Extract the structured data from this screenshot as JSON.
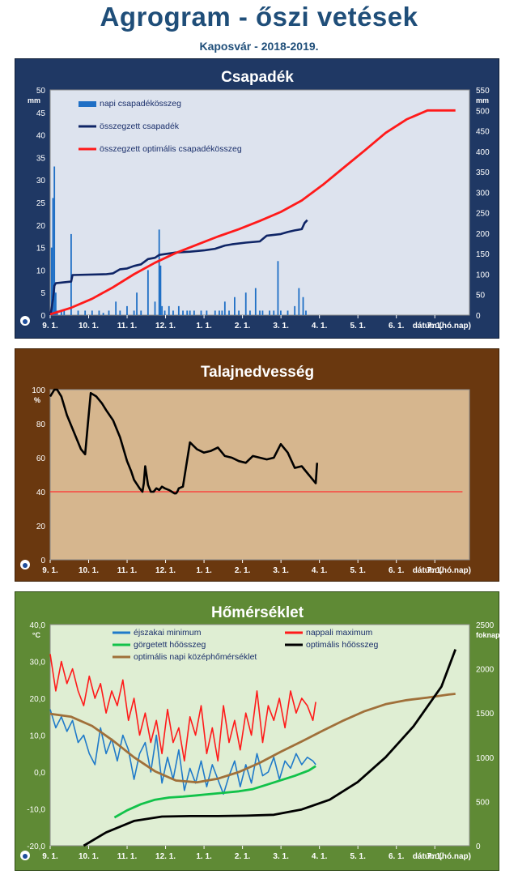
{
  "header": {
    "title": "Agrogram - őszi vetések",
    "subtitle": "Kaposvár  - 2018-2019."
  },
  "x_axis": {
    "tick_labels": [
      "9. 1.",
      "10. 1.",
      "11. 1.",
      "12. 1.",
      "1. 1.",
      "2. 1.",
      "3. 1.",
      "4. 1.",
      "5. 1.",
      "6. 1.",
      "7. 1."
    ],
    "label": "dátum (hó.nap)"
  },
  "colors": {
    "panel1_bg": "#1f3864",
    "panel2_bg": "#6a380f",
    "panel3_bg": "#5f8a35",
    "plot1_bg": "#dde3ee",
    "plot2_bg": "#d6b68e",
    "plot3_bg": "#dfeed3"
  },
  "chart_data": [
    {
      "type": "bar",
      "title": "Csapadék",
      "y_unit_left": "mm",
      "y_unit_right": "mm",
      "ylim_left": [
        0,
        50
      ],
      "ylim_right": [
        0,
        550
      ],
      "yticks_left": [
        0,
        5,
        10,
        15,
        20,
        25,
        30,
        35,
        40,
        45,
        50
      ],
      "yticks_right": [
        0,
        50,
        100,
        150,
        200,
        250,
        300,
        350,
        400,
        450,
        500,
        550
      ],
      "legend": [
        "napi csapadékösszeg",
        "összegzett csapadék",
        "összegzett optimális csapadékösszeg"
      ],
      "series": [
        {
          "name": "napi csapadékösszeg",
          "axis": "left",
          "style": "bar",
          "x": [
            1,
            2,
            3,
            4,
            5,
            8,
            10,
            15,
            20,
            25,
            30,
            35,
            38,
            42,
            47,
            50,
            55,
            60,
            62,
            65,
            70,
            75,
            78,
            79,
            80,
            82,
            85,
            88,
            92,
            95,
            98,
            100,
            103,
            108,
            112,
            118,
            121,
            123,
            125,
            128,
            132,
            135,
            140,
            143,
            147,
            150,
            152,
            157,
            160,
            163,
            165,
            170,
            175,
            178,
            181,
            183
          ],
          "values": [
            15,
            26,
            33,
            5,
            1,
            1,
            1,
            18,
            1,
            1,
            1,
            1,
            0.5,
            1,
            3,
            1,
            2,
            1,
            5,
            1,
            10,
            3,
            19,
            11,
            2,
            1,
            2,
            1,
            2,
            1,
            1,
            1,
            1,
            1,
            1,
            1,
            1,
            1,
            3,
            1,
            4,
            1,
            5,
            1,
            6,
            1,
            1,
            1,
            1,
            12,
            1,
            1,
            2,
            6,
            4,
            1
          ]
        },
        {
          "name": "összegzett csapadék",
          "axis": "right",
          "style": "line",
          "x": [
            0,
            1,
            2,
            3,
            4,
            15,
            16,
            40,
            45,
            50,
            55,
            60,
            65,
            70,
            75,
            78,
            80,
            90,
            100,
            110,
            118,
            125,
            130,
            140,
            150,
            155,
            160,
            165,
            170,
            175,
            180,
            182,
            184
          ],
          "values": [
            0,
            15,
            40,
            72,
            78,
            82,
            98,
            100,
            102,
            112,
            114,
            120,
            124,
            137,
            140,
            147,
            148,
            153,
            155,
            158,
            162,
            170,
            173,
            177,
            180,
            194,
            196,
            198,
            203,
            207,
            210,
            225,
            232
          ]
        },
        {
          "name": "összegzett optimális csapadékösszeg",
          "axis": "right",
          "style": "line",
          "x": [
            0,
            15,
            30,
            45,
            60,
            75,
            90,
            105,
            120,
            135,
            150,
            165,
            180,
            195,
            210,
            225,
            240,
            255,
            270,
            285,
            290
          ],
          "values": [
            2,
            18,
            40,
            68,
            100,
            128,
            152,
            172,
            192,
            210,
            230,
            252,
            280,
            318,
            360,
            402,
            445,
            478,
            500,
            500,
            500
          ]
        }
      ]
    },
    {
      "type": "line",
      "title": "Talajnedvesség",
      "y_unit_left": "%",
      "ylim_left": [
        0,
        100
      ],
      "yticks_left": [
        0,
        20,
        40,
        60,
        80,
        100
      ],
      "series": [
        {
          "name": "",
          "style": "line",
          "x": [
            0,
            3,
            5,
            8,
            12,
            18,
            22,
            25,
            27,
            29,
            33,
            37,
            40,
            45,
            50,
            55,
            58,
            60,
            64,
            66,
            67,
            68,
            70,
            72,
            74,
            76,
            78,
            80,
            82,
            85,
            89,
            90,
            91,
            92,
            95,
            100,
            105,
            110,
            115,
            120,
            125,
            130,
            135,
            140,
            145,
            150,
            155,
            160,
            165,
            170,
            175,
            180,
            185,
            188,
            190,
            191
          ],
          "values": [
            96,
            100,
            100,
            96,
            85,
            73,
            65,
            62,
            80,
            98,
            96,
            92,
            88,
            82,
            72,
            58,
            52,
            47,
            42,
            40,
            45,
            55,
            44,
            40,
            40,
            42,
            41,
            43,
            42,
            41,
            39,
            39,
            40,
            42,
            43,
            69,
            65,
            63,
            64,
            66,
            61,
            60,
            58,
            57,
            61,
            60,
            59,
            60,
            68,
            63,
            54,
            55,
            50,
            47,
            45,
            57
          ]
        },
        {
          "name": "",
          "style": "line",
          "x": [
            0,
            295
          ],
          "values": [
            40,
            40
          ]
        }
      ]
    },
    {
      "type": "line",
      "title": "Hőmérséklet",
      "y_unit_left": "°C",
      "y_unit_right": "foknap",
      "ylim_left": [
        -20,
        40
      ],
      "ylim_right": [
        0,
        2500
      ],
      "yticks_left": [
        -20,
        -10,
        0,
        10,
        20,
        30,
        40
      ],
      "yticks_left_labels": [
        "-20,0",
        "-10,0",
        "0,0",
        "10,0",
        "20,0",
        "30,0",
        "40,0"
      ],
      "yticks_right": [
        0,
        500,
        1000,
        1500,
        2000,
        2500
      ],
      "legend": [
        "éjszakai minimum",
        "nappali maximum",
        "görgetett hőösszeg",
        "optimális hőösszeg",
        "optimális napi középhőmérséklet"
      ],
      "series": [
        {
          "name": "éjszakai minimum",
          "axis": "left",
          "style": "line",
          "x": [
            0,
            4,
            8,
            12,
            16,
            20,
            24,
            28,
            32,
            36,
            40,
            44,
            48,
            52,
            56,
            60,
            64,
            68,
            72,
            76,
            80,
            84,
            88,
            92,
            96,
            100,
            104,
            108,
            112,
            116,
            120,
            124,
            128,
            132,
            136,
            140,
            144,
            148,
            152,
            156,
            160,
            164,
            168,
            172,
            176,
            180,
            184,
            188,
            190
          ],
          "values": [
            17,
            12,
            15,
            11,
            14,
            8,
            10,
            5,
            2,
            12,
            5,
            9,
            3,
            10,
            6,
            -2,
            5,
            8,
            0,
            10,
            -3,
            4,
            -2,
            6,
            -5,
            1,
            -3,
            3,
            -4,
            2,
            -2,
            -6,
            -1,
            3,
            -4,
            2,
            -3,
            5,
            -1,
            0,
            4,
            -2,
            3,
            1,
            5,
            2,
            4,
            3,
            2
          ]
        },
        {
          "name": "nappali maximum",
          "axis": "left",
          "style": "line",
          "x": [
            0,
            4,
            8,
            12,
            16,
            20,
            24,
            28,
            32,
            36,
            40,
            44,
            48,
            52,
            56,
            60,
            64,
            68,
            72,
            76,
            80,
            84,
            88,
            92,
            96,
            100,
            104,
            108,
            112,
            116,
            120,
            124,
            128,
            132,
            136,
            140,
            144,
            148,
            152,
            156,
            160,
            164,
            168,
            172,
            176,
            180,
            184,
            188,
            190
          ],
          "values": [
            32,
            22,
            30,
            24,
            28,
            22,
            18,
            26,
            20,
            24,
            16,
            22,
            18,
            25,
            14,
            20,
            10,
            16,
            8,
            14,
            5,
            17,
            8,
            12,
            3,
            15,
            10,
            18,
            5,
            12,
            3,
            18,
            8,
            14,
            6,
            16,
            10,
            22,
            8,
            18,
            14,
            20,
            12,
            22,
            16,
            20,
            18,
            14,
            19
          ]
        },
        {
          "name": "görgetett hőösszeg",
          "axis": "right",
          "style": "line",
          "x": [
            46,
            55,
            65,
            75,
            85,
            95,
            105,
            115,
            125,
            135,
            145,
            155,
            165,
            175,
            185,
            190
          ],
          "values": [
            320,
            400,
            470,
            520,
            545,
            555,
            570,
            585,
            600,
            615,
            640,
            690,
            740,
            790,
            850,
            900
          ]
        },
        {
          "name": "optimális hőösszeg",
          "axis": "right",
          "style": "line",
          "x": [
            24,
            40,
            60,
            80,
            100,
            120,
            140,
            160,
            180,
            200,
            220,
            240,
            260,
            280,
            290
          ],
          "values": [
            0,
            150,
            280,
            330,
            335,
            335,
            340,
            350,
            410,
            520,
            720,
            1000,
            1350,
            1800,
            2220
          ]
        },
        {
          "name": "optimális napi középhőmérséklet",
          "axis": "left",
          "style": "line",
          "x": [
            0,
            15,
            30,
            45,
            60,
            75,
            90,
            105,
            120,
            135,
            150,
            165,
            180,
            195,
            210,
            225,
            240,
            255,
            270,
            285,
            290
          ],
          "values": [
            15.8,
            15,
            12.5,
            8.5,
            4,
            0.2,
            -2.3,
            -2.8,
            -1.8,
            0,
            2.5,
            5.5,
            8.3,
            11.2,
            14,
            16.5,
            18.4,
            19.5,
            20.2,
            21,
            21.2
          ]
        }
      ]
    }
  ]
}
